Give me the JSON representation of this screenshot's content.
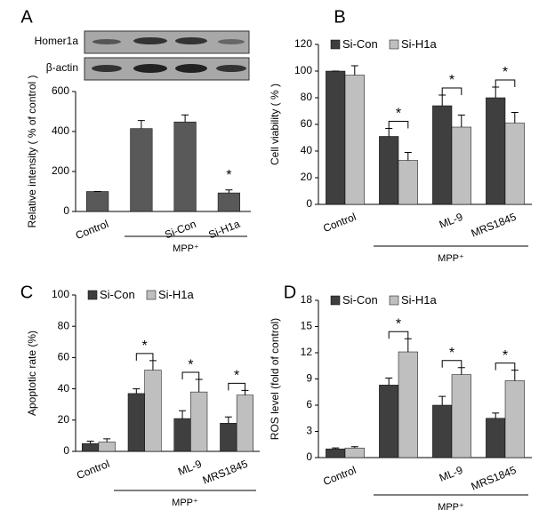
{
  "chart_data": [
    {
      "type": "bar",
      "panel": "A",
      "blot_labels": [
        "Homer1a",
        "β-actin"
      ],
      "ylabel": "Relative intensity ( % of control )",
      "categories": [
        "Control",
        null,
        "Si-Con",
        "Si-H1a"
      ],
      "values": [
        100,
        415,
        448,
        93
      ],
      "errors": [
        0,
        40,
        35,
        15
      ],
      "color": "#595959",
      "ylim": [
        0,
        600
      ],
      "yticks": [
        0,
        200,
        400,
        600
      ],
      "significance": [
        null,
        null,
        null,
        "*"
      ],
      "group_label": "MPP⁺"
    },
    {
      "type": "grouped_bar",
      "panel": "B",
      "ylabel": "Cell viability ( % )",
      "categories": [
        "Control",
        null,
        "ML-9",
        "MRS1845"
      ],
      "series": [
        {
          "name": "Si-Con",
          "color": "#3f3f3f",
          "values": [
            100,
            51,
            74,
            80
          ],
          "errors": [
            0,
            6,
            8,
            8
          ]
        },
        {
          "name": "Si-H1a",
          "color": "#bfbfbf",
          "values": [
            97,
            33,
            58,
            61
          ],
          "errors": [
            7,
            6,
            9,
            8
          ]
        }
      ],
      "ylim": [
        0,
        120
      ],
      "yticks": [
        0,
        20,
        40,
        60,
        80,
        100,
        120
      ],
      "significance": [
        null,
        "*",
        "*",
        "*"
      ],
      "group_label": "MPP⁺"
    },
    {
      "type": "grouped_bar",
      "panel": "C",
      "ylabel": "Apoptotic rate (%)",
      "categories": [
        "Control",
        null,
        "ML-9",
        "MRS1845"
      ],
      "series": [
        {
          "name": "Si-Con",
          "color": "#3f3f3f",
          "values": [
            5,
            37,
            21,
            18
          ],
          "errors": [
            1.5,
            3,
            5,
            4
          ]
        },
        {
          "name": "Si-H1a",
          "color": "#bfbfbf",
          "values": [
            6,
            52,
            38,
            36
          ],
          "errors": [
            2,
            6,
            8,
            3
          ]
        }
      ],
      "ylim": [
        0,
        100
      ],
      "yticks": [
        0,
        20,
        40,
        60,
        80,
        100
      ],
      "significance": [
        null,
        "*",
        "*",
        "*"
      ],
      "group_label": "MPP⁺"
    },
    {
      "type": "grouped_bar",
      "panel": "D",
      "ylabel": "ROS level (fold of control)",
      "categories": [
        "Control",
        null,
        "ML-9",
        "MRS1845"
      ],
      "series": [
        {
          "name": "Si-Con",
          "color": "#3f3f3f",
          "values": [
            1,
            8.3,
            6,
            4.5
          ],
          "errors": [
            0.1,
            0.8,
            1,
            0.6
          ]
        },
        {
          "name": "Si-H1a",
          "color": "#bfbfbf",
          "values": [
            1.1,
            12.1,
            9.5,
            8.8
          ],
          "errors": [
            0.15,
            1.5,
            0.8,
            1.2
          ]
        }
      ],
      "ylim": [
        0,
        18
      ],
      "yticks": [
        0,
        3,
        6,
        9,
        12,
        15,
        18
      ],
      "significance": [
        null,
        "*",
        "*",
        "*"
      ],
      "group_label": "MPP⁺"
    }
  ]
}
